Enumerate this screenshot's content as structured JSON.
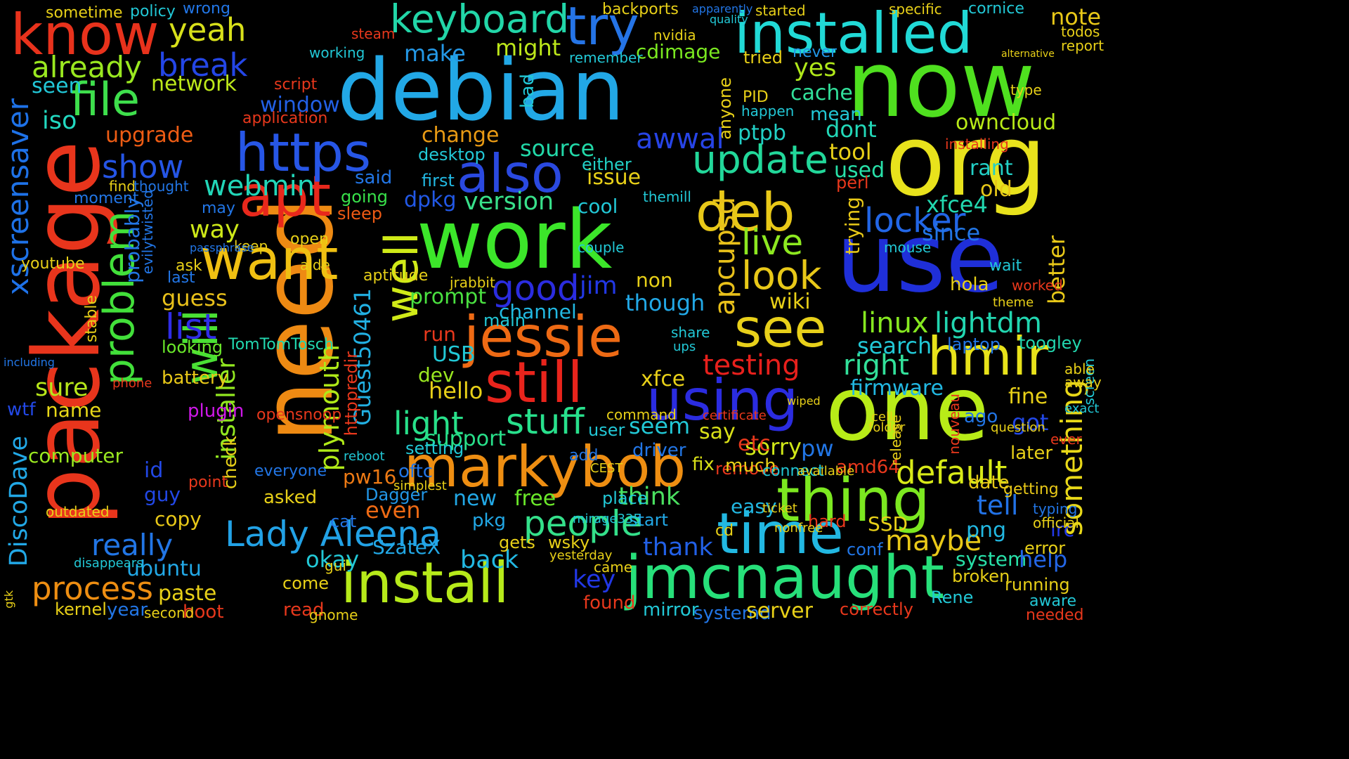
{
  "words": [
    {
      "text": "debian",
      "color": "#22a8e6"
    },
    {
      "text": "work",
      "color": "#3ce62a"
    },
    {
      "text": "use",
      "color": "#1f2fd9"
    },
    {
      "text": "now",
      "color": "#4fe01f"
    },
    {
      "text": "org",
      "color": "#e8e21c"
    },
    {
      "text": "need",
      "color": "#ee8a13"
    },
    {
      "text": "package",
      "color": "#e8351c"
    },
    {
      "text": "one",
      "color": "#b8ec18"
    },
    {
      "text": "installed",
      "color": "#21d9d6"
    },
    {
      "text": "know",
      "color": "#e8321c"
    },
    {
      "text": "jmcnaught",
      "color": "#27e07a"
    },
    {
      "text": "install",
      "color": "#b6ea1a"
    },
    {
      "text": "markybob",
      "color": "#ee8e12"
    },
    {
      "text": "thing",
      "color": "#7ce820"
    },
    {
      "text": "time",
      "color": "#22b8e2"
    },
    {
      "text": "jessie",
      "color": "#ee6a14"
    },
    {
      "text": "still",
      "color": "#e8241c"
    },
    {
      "text": "using",
      "color": "#2b2ce0"
    },
    {
      "text": "apt",
      "color": "#e8281c"
    },
    {
      "text": "want",
      "color": "#f0c012"
    },
    {
      "text": "see",
      "color": "#e8d01a"
    },
    {
      "text": "deb",
      "color": "#e8c818"
    },
    {
      "text": "https",
      "color": "#2756e6"
    },
    {
      "text": "also",
      "color": "#2a49e0"
    },
    {
      "text": "hmir",
      "color": "#e8e21a"
    },
    {
      "text": "xscreensaver",
      "color": "#1e72e8"
    },
    {
      "text": "well",
      "color": "#d0ea18"
    },
    {
      "text": "problem",
      "color": "#42e03a"
    },
    {
      "text": "will",
      "color": "#4ae034"
    },
    {
      "text": "file",
      "color": "#3edf4c"
    },
    {
      "text": "try",
      "color": "#2574e6"
    },
    {
      "text": "keyboard",
      "color": "#22d6a8"
    },
    {
      "text": "update",
      "color": "#22d89a"
    },
    {
      "text": "look",
      "color": "#e8c818"
    },
    {
      "text": "good",
      "color": "#2b2ce0"
    },
    {
      "text": "Lady_Aleena",
      "color": "#22a2e6"
    },
    {
      "text": "light",
      "color": "#28e08a"
    },
    {
      "text": "stuff",
      "color": "#28e08c"
    },
    {
      "text": "people",
      "color": "#34e08a"
    },
    {
      "text": "default",
      "color": "#d8ea18"
    },
    {
      "text": "process",
      "color": "#ee8e12"
    },
    {
      "text": "yeah",
      "color": "#d8e01a"
    },
    {
      "text": "break",
      "color": "#2446e6"
    },
    {
      "text": "locker",
      "color": "#2266e6"
    },
    {
      "text": "list",
      "color": "#2f2ce6"
    },
    {
      "text": "show",
      "color": "#2555e6"
    },
    {
      "text": "already",
      "color": "#9ae820"
    },
    {
      "text": "plymouth",
      "color": "#b0ea18"
    },
    {
      "text": "live",
      "color": "#8de820"
    },
    {
      "text": "installer",
      "color": "#92e820"
    },
    {
      "text": "apcupsd",
      "color": "#e8c01a"
    },
    {
      "text": "Guest50461",
      "color": "#22b0e2"
    },
    {
      "text": "linux",
      "color": "#86e820"
    },
    {
      "text": "lightdm",
      "color": "#22d6b0"
    },
    {
      "text": "something",
      "color": "#e8d818"
    },
    {
      "text": "maybe",
      "color": "#e8c818"
    },
    {
      "text": "really",
      "color": "#2276e6"
    },
    {
      "text": "DiscoDave",
      "color": "#22a8e6"
    },
    {
      "text": "testing",
      "color": "#e8201c"
    },
    {
      "text": "right",
      "color": "#32e09a"
    },
    {
      "text": "awwal",
      "color": "#2744e6"
    },
    {
      "text": "webmin",
      "color": "#22d6b8"
    },
    {
      "text": "version",
      "color": "#38e08a"
    },
    {
      "text": "source",
      "color": "#22d8a8"
    },
    {
      "text": "network",
      "color": "#bde81a"
    },
    {
      "text": "window",
      "color": "#2260e6"
    },
    {
      "text": "firmware",
      "color": "#22b8e2"
    },
    {
      "text": "search",
      "color": "#22c8d6"
    },
    {
      "text": "owncloud",
      "color": "#b8ea18"
    },
    {
      "text": "cache",
      "color": "#32e09a"
    },
    {
      "text": "ptpb",
      "color": "#22d0c6"
    },
    {
      "text": "might",
      "color": "#bde81a"
    },
    {
      "text": "make",
      "color": "#2498e6"
    },
    {
      "text": "upgrade",
      "color": "#ee5c14"
    },
    {
      "text": "iso",
      "color": "#22d8c0"
    },
    {
      "text": "seen",
      "color": "#22c6d6"
    },
    {
      "text": "change",
      "color": "#e89a14"
    },
    {
      "text": "cdimage",
      "color": "#7ae820"
    },
    {
      "text": "yes",
      "color": "#b0e81a"
    },
    {
      "text": "sure",
      "color": "#b8e81a"
    },
    {
      "text": "computer",
      "color": "#9ae820"
    },
    {
      "text": "ubuntu",
      "color": "#22a8e6"
    },
    {
      "text": "paste",
      "color": "#e8d018"
    },
    {
      "text": "back",
      "color": "#22b8e2"
    },
    {
      "text": "key",
      "color": "#2238e6"
    },
    {
      "text": "system",
      "color": "#28e0a8"
    },
    {
      "text": "help",
      "color": "#2466e6"
    },
    {
      "text": "tell",
      "color": "#2272e6"
    },
    {
      "text": "irc",
      "color": "#2238e6"
    },
    {
      "text": "png",
      "color": "#22b8e2"
    },
    {
      "text": "fine",
      "color": "#e8d018"
    },
    {
      "text": "got",
      "color": "#2248e6"
    },
    {
      "text": "sorry",
      "color": "#d0e818"
    },
    {
      "text": "say",
      "color": "#d8e018"
    },
    {
      "text": "seem",
      "color": "#22c8d6"
    },
    {
      "text": "though",
      "color": "#22a8e6"
    },
    {
      "text": "wiki",
      "color": "#e8d018"
    },
    {
      "text": "issue",
      "color": "#e8d018"
    },
    {
      "text": "channel",
      "color": "#22b8e2"
    },
    {
      "text": "jim",
      "color": "#2238e6"
    },
    {
      "text": "non",
      "color": "#e8d018"
    },
    {
      "text": "guess",
      "color": "#e8c01a"
    },
    {
      "text": "way",
      "color": "#cde818"
    },
    {
      "text": "probably",
      "color": "#2276e6"
    },
    {
      "text": "prompt",
      "color": "#4ae040"
    },
    {
      "text": "support",
      "color": "#28e08a"
    },
    {
      "text": "hello",
      "color": "#e8d018"
    },
    {
      "text": "USB",
      "color": "#22c8d6"
    },
    {
      "text": "dev",
      "color": "#9ae820"
    },
    {
      "text": "run",
      "color": "#e8381c"
    },
    {
      "text": "pw16",
      "color": "#ee7a14"
    },
    {
      "text": "even",
      "color": "#ee6a14"
    },
    {
      "text": "new",
      "color": "#22a8e6"
    },
    {
      "text": "free",
      "color": "#6ae82a"
    },
    {
      "text": "think",
      "color": "#4ae060"
    },
    {
      "text": "thank",
      "color": "#2260e6"
    },
    {
      "text": "okay",
      "color": "#22c8d6"
    },
    {
      "text": "SzateX",
      "color": "#22a8e6"
    },
    {
      "text": "Dagger",
      "color": "#2296e6"
    },
    {
      "text": "asked",
      "color": "#e8d018"
    },
    {
      "text": "check",
      "color": "#e8d018"
    },
    {
      "text": "guy",
      "color": "#2248e6"
    },
    {
      "text": "id",
      "color": "#2248e6"
    },
    {
      "text": "copy",
      "color": "#e8c818"
    },
    {
      "text": "name",
      "color": "#e8d818"
    },
    {
      "text": "wtf",
      "color": "#2248e6"
    },
    {
      "text": "youtube",
      "color": "#e8d018"
    },
    {
      "text": "webmin_2",
      "color": "#22d6b8"
    },
    {
      "text": "dpkg",
      "color": "#2258e6"
    },
    {
      "text": "said",
      "color": "#2276e6"
    },
    {
      "text": "going",
      "color": "#38e04a"
    },
    {
      "text": "sleep",
      "color": "#ee5a14"
    },
    {
      "text": "desktop",
      "color": "#22c8d6"
    },
    {
      "text": "first",
      "color": "#22b8e2"
    },
    {
      "text": "cool",
      "color": "#22c8d6"
    },
    {
      "text": "either",
      "color": "#22d0c6"
    },
    {
      "text": "dont",
      "color": "#22d8b8"
    },
    {
      "text": "tool",
      "color": "#e8d018"
    },
    {
      "text": "used",
      "color": "#28e0a8"
    },
    {
      "text": "rant",
      "color": "#22d0c6"
    },
    {
      "text": "old",
      "color": "#e8c818"
    },
    {
      "text": "xfce4",
      "color": "#22d8b0"
    },
    {
      "text": "since",
      "color": "#2276e6"
    },
    {
      "text": "better",
      "color": "#e8c818"
    },
    {
      "text": "toogley",
      "color": "#22d8b0"
    },
    {
      "text": "laptop",
      "color": "#2276e6"
    },
    {
      "text": "note",
      "color": "#e8c818"
    },
    {
      "text": "tried",
      "color": "#e8d018"
    },
    {
      "text": "never",
      "color": "#2296e6"
    },
    {
      "text": "mean",
      "color": "#22c8d6"
    },
    {
      "text": "perl",
      "color": "#e8381c"
    },
    {
      "text": "trying",
      "color": "#e8c818"
    },
    {
      "text": "amd64",
      "color": "#e8381c"
    },
    {
      "text": "later",
      "color": "#e8d018"
    },
    {
      "text": "ago",
      "color": "#2276e6"
    },
    {
      "text": "date",
      "color": "#e8c818"
    },
    {
      "text": "getting",
      "color": "#e8c818"
    },
    {
      "text": "worked",
      "color": "#e8381c"
    },
    {
      "text": "wait",
      "color": "#22c8d6"
    },
    {
      "text": "hola",
      "color": "#e8d018"
    },
    {
      "text": "TomTomTosch",
      "color": "#22d8b0"
    },
    {
      "text": "looking",
      "color": "#6ae82a"
    },
    {
      "text": "battery",
      "color": "#e8c818"
    },
    {
      "text": "plugin",
      "color": "#ce18e8"
    },
    {
      "text": "point",
      "color": "#e8381c"
    },
    {
      "text": "kernel",
      "color": "#e8d018"
    },
    {
      "text": "year",
      "color": "#2276e6"
    },
    {
      "text": "boot",
      "color": "#e8381c"
    },
    {
      "text": "second",
      "color": "#e8d018"
    },
    {
      "text": "opensnoop",
      "color": "#e8381c"
    },
    {
      "text": "everyone",
      "color": "#2276e6"
    },
    {
      "text": "setting",
      "color": "#22c8d6"
    },
    {
      "text": "oftc",
      "color": "#2276e6"
    },
    {
      "text": "pkg",
      "color": "#22a8e6"
    },
    {
      "text": "cat",
      "color": "#2276e6"
    },
    {
      "text": "come",
      "color": "#e8d018"
    },
    {
      "text": "remove",
      "color": "#e8381c"
    },
    {
      "text": "place",
      "color": "#22c8d6"
    },
    {
      "text": "easy",
      "color": "#22b8e2"
    },
    {
      "text": "fix",
      "color": "#d8e018"
    },
    {
      "text": "much",
      "color": "#e8d018"
    },
    {
      "text": "connect",
      "color": "#22c8d6"
    },
    {
      "text": "driver",
      "color": "#2276e6"
    },
    {
      "text": "pw",
      "color": "#2276e6"
    },
    {
      "text": "etc",
      "color": "#e8381c"
    },
    {
      "text": "xfce",
      "color": "#e8d018"
    },
    {
      "text": "user",
      "color": "#22c8d6"
    },
    {
      "text": "start",
      "color": "#22a8e6"
    },
    {
      "text": "hard",
      "color": "#e8381c"
    },
    {
      "text": "SSD",
      "color": "#e8d018"
    },
    {
      "text": "conf",
      "color": "#2276e6"
    },
    {
      "text": "gets",
      "color": "#e8d018"
    },
    {
      "text": "wsky",
      "color": "#e8d018"
    },
    {
      "text": "found",
      "color": "#e8381c"
    },
    {
      "text": "mirror",
      "color": "#22c8d6"
    },
    {
      "text": "systemd",
      "color": "#2276e6"
    },
    {
      "text": "server",
      "color": "#e8d018"
    },
    {
      "text": "correctly",
      "color": "#e8381c"
    },
    {
      "text": "read",
      "color": "#e8381c"
    },
    {
      "text": "gnome",
      "color": "#e8d018"
    },
    {
      "text": "running",
      "color": "#e8d018"
    },
    {
      "text": "aware",
      "color": "#22c8d6"
    },
    {
      "text": "broken",
      "color": "#e8d018"
    },
    {
      "text": "Rene",
      "color": "#22c8d6"
    },
    {
      "text": "error",
      "color": "#e8d018"
    },
    {
      "text": "needed",
      "color": "#e8381c"
    },
    {
      "text": "sometime",
      "color": "#e8d018"
    },
    {
      "text": "policy",
      "color": "#22c8d6"
    },
    {
      "text": "wrong",
      "color": "#2276e6"
    },
    {
      "text": "backports",
      "color": "#e8d018"
    },
    {
      "text": "started",
      "color": "#e8d018"
    },
    {
      "text": "steam",
      "color": "#e8381c"
    },
    {
      "text": "working",
      "color": "#22c8d6"
    },
    {
      "text": "remember",
      "color": "#22c8d6"
    },
    {
      "text": "nvidia",
      "color": "#e8d018"
    },
    {
      "text": "script",
      "color": "#e8381c"
    },
    {
      "text": "application",
      "color": "#e8381c"
    },
    {
      "text": "bad",
      "color": "#22c8d6"
    },
    {
      "text": "happen",
      "color": "#22c8d6"
    },
    {
      "text": "anyone",
      "color": "#e8d018"
    },
    {
      "text": "PID",
      "color": "#e8d018"
    },
    {
      "text": "themill",
      "color": "#22c8d6"
    },
    {
      "text": "couple",
      "color": "#22c8d6"
    },
    {
      "text": "main",
      "color": "#22c8d6"
    },
    {
      "text": "installing",
      "color": "#e8381c"
    },
    {
      "text": "mouse",
      "color": "#22c8d6"
    },
    {
      "text": "report",
      "color": "#e8d018"
    },
    {
      "text": "todos",
      "color": "#e8d018"
    },
    {
      "text": "type",
      "color": "#e8d018"
    },
    {
      "text": "cornice",
      "color": "#22c8d6"
    },
    {
      "text": "moment",
      "color": "#2276e6"
    },
    {
      "text": "find",
      "color": "#e8d018"
    },
    {
      "text": "thought",
      "color": "#2276e6"
    },
    {
      "text": "open",
      "color": "#e8d018"
    },
    {
      "text": "keep",
      "color": "#e8d018"
    },
    {
      "text": "aide",
      "color": "#e8d018"
    },
    {
      "text": "httppredir",
      "color": "#e8381c"
    },
    {
      "text": "jrabbit",
      "color": "#e8d018"
    },
    {
      "text": "aptitude",
      "color": "#e8d018"
    },
    {
      "text": "may",
      "color": "#2276e6"
    },
    {
      "text": "last",
      "color": "#2276e6"
    },
    {
      "text": "ask",
      "color": "#e8d018"
    },
    {
      "text": "passphrase",
      "color": "#2276e6"
    },
    {
      "text": "stable",
      "color": "#e8d018"
    },
    {
      "text": "evilytwisted",
      "color": "#2276e6"
    },
    {
      "text": "including",
      "color": "#2276e6"
    },
    {
      "text": "phone",
      "color": "#e8381c"
    },
    {
      "text": "outdated",
      "color": "#e8d018"
    },
    {
      "text": "disappears",
      "color": "#22c8d6"
    },
    {
      "text": "gtk",
      "color": "#e8d018"
    },
    {
      "text": "typing",
      "color": "#2276e6"
    },
    {
      "text": "official",
      "color": "#e8d018"
    },
    {
      "text": "ever",
      "color": "#e8381c"
    },
    {
      "text": "exact",
      "color": "#22c8d6"
    },
    {
      "text": "screen",
      "color": "#22c8d6"
    },
    {
      "text": "able",
      "color": "#e8d018"
    },
    {
      "text": "away",
      "color": "#e8d018"
    },
    {
      "text": "apparently",
      "color": "#2276e6"
    },
    {
      "text": "quality",
      "color": "#22c8d6"
    },
    {
      "text": "specific",
      "color": "#e8d018"
    },
    {
      "text": "alternative",
      "color": "#e8d018"
    },
    {
      "text": "mirage335",
      "color": "#22c8d6"
    },
    {
      "text": "ubuntu_2",
      "color": "#22a8e6"
    },
    {
      "text": "cd",
      "color": "#e8d018"
    },
    {
      "text": "wiped",
      "color": "#e8d018"
    },
    {
      "text": "nonfree",
      "color": "#e8d018"
    },
    {
      "text": "ticket",
      "color": "#e8d018"
    },
    {
      "text": "CEST",
      "color": "#e8d018"
    },
    {
      "text": "reboot",
      "color": "#22c8d6"
    },
    {
      "text": "gui",
      "color": "#e8d018"
    },
    {
      "text": "simplest",
      "color": "#e8d018"
    },
    {
      "text": "yesterday",
      "color": "#e8d018"
    },
    {
      "text": "came",
      "color": "#e8d018"
    },
    {
      "text": "command",
      "color": "#e8d018"
    },
    {
      "text": "add",
      "color": "#2276e6"
    },
    {
      "text": "ups",
      "color": "#22c8d6"
    },
    {
      "text": "share",
      "color": "#22c8d6"
    },
    {
      "text": "theme",
      "color": "#e8d018"
    },
    {
      "text": "question",
      "color": "#e8d018"
    },
    {
      "text": "cell",
      "color": "#e8d018"
    },
    {
      "text": "folder",
      "color": "#e8d018"
    },
    {
      "text": "certificate",
      "color": "#e8381c"
    },
    {
      "text": "available",
      "color": "#e8d018"
    },
    {
      "text": "release",
      "color": "#e8d018"
    },
    {
      "text": "nouveau",
      "color": "#e8381c"
    }
  ]
}
